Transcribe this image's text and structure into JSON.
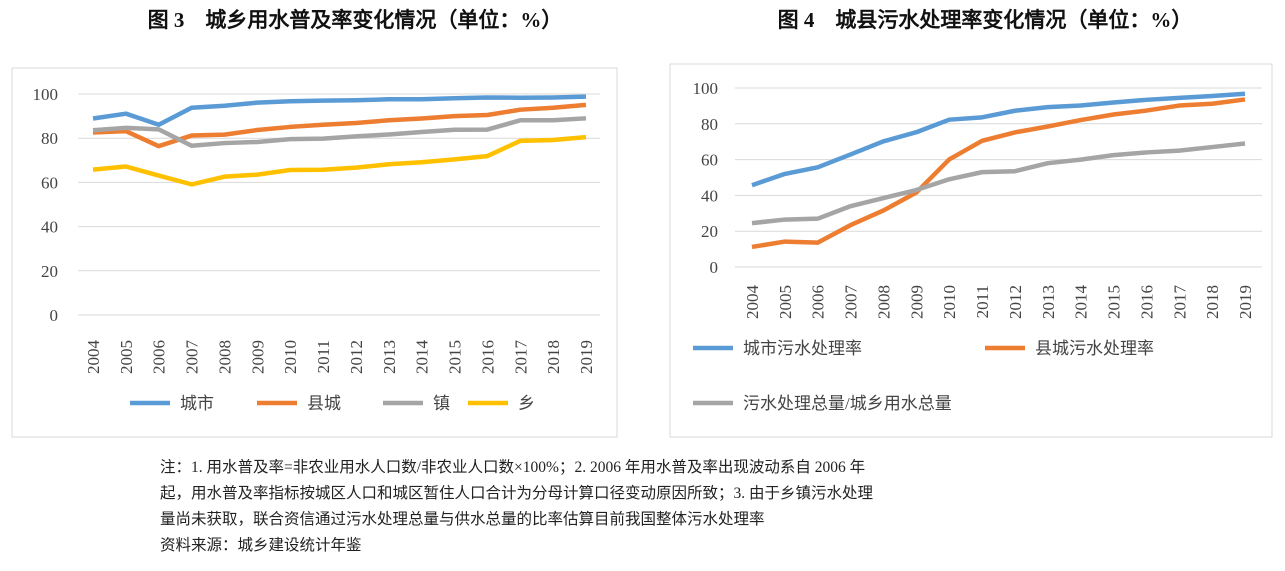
{
  "chart_data": [
    {
      "type": "line",
      "title": "图 3　城乡用水普及率变化情况（单位：%）",
      "categories": [
        "2004",
        "2005",
        "2006",
        "2007",
        "2008",
        "2009",
        "2010",
        "2011",
        "2012",
        "2013",
        "2014",
        "2015",
        "2016",
        "2017",
        "2018",
        "2019"
      ],
      "ylim": [
        0,
        100
      ],
      "yticks": [
        0,
        20,
        40,
        60,
        80,
        100
      ],
      "grid": true,
      "legend": "bottom",
      "series": [
        {
          "name": "城市",
          "color": "#5b9bd5",
          "values": [
            88.9,
            91.1,
            86.1,
            93.8,
            94.7,
            96.1,
            96.7,
            97.0,
            97.2,
            97.6,
            97.6,
            98.1,
            98.4,
            98.3,
            98.4,
            98.8
          ]
        },
        {
          "name": "县城",
          "color": "#ed7d31",
          "values": [
            82.6,
            83.2,
            76.4,
            81.2,
            81.6,
            83.7,
            85.1,
            86.1,
            86.9,
            88.1,
            88.9,
            90.0,
            90.5,
            92.9,
            93.8,
            95.1
          ]
        },
        {
          "name": "镇",
          "color": "#a5a5a5",
          "values": [
            83.6,
            84.7,
            84.0,
            76.6,
            77.8,
            78.3,
            79.6,
            79.8,
            80.8,
            81.7,
            82.8,
            83.8,
            83.9,
            88.1,
            88.1,
            89.0
          ]
        },
        {
          "name": "乡",
          "color": "#ffc000",
          "values": [
            65.8,
            67.2,
            63.1,
            59.1,
            62.6,
            63.5,
            65.6,
            65.7,
            66.7,
            68.2,
            69.1,
            70.4,
            71.9,
            78.8,
            79.2,
            80.5
          ]
        }
      ]
    },
    {
      "type": "line",
      "title": "图 4　城县污水处理率变化情况（单位：%）",
      "categories": [
        "2004",
        "2005",
        "2006",
        "2007",
        "2008",
        "2009",
        "2010",
        "2011",
        "2012",
        "2013",
        "2014",
        "2015",
        "2016",
        "2017",
        "2018",
        "2019"
      ],
      "ylim": [
        0,
        100
      ],
      "yticks": [
        0,
        20,
        40,
        60,
        80,
        100
      ],
      "grid": true,
      "legend": "bottom",
      "series": [
        {
          "name": "城市污水处理率",
          "color": "#5b9bd5",
          "values": [
            45.7,
            52.0,
            55.7,
            62.9,
            70.2,
            75.3,
            82.3,
            83.6,
            87.3,
            89.3,
            90.2,
            91.9,
            93.4,
            94.5,
            95.5,
            96.8
          ]
        },
        {
          "name": "县城污水处理率",
          "color": "#ed7d31",
          "values": [
            11.2,
            14.2,
            13.6,
            23.4,
            31.6,
            41.6,
            60.1,
            70.5,
            75.2,
            78.5,
            82.1,
            85.2,
            87.4,
            90.2,
            91.2,
            93.6
          ]
        },
        {
          "name": "污水处理总量/城乡用水总量",
          "color": "#a5a5a5",
          "values": [
            24.5,
            26.5,
            27.0,
            34.0,
            38.5,
            43.0,
            49.0,
            53.0,
            53.5,
            58.0,
            60.0,
            62.5,
            64.0,
            65.0,
            67.0,
            69.0
          ]
        }
      ]
    }
  ],
  "notes": [
    "注：1. 用水普及率=非农业用水人口数/非农业人口数×100%；2. 2006 年用水普及率出现波动系自 2006 年",
    "起，用水普及率指标按城区人口和城区暂住人口合计为分母计算口径变动原因所致；3. 由于乡镇污水处理",
    "量尚未获取，联合资信通过污水处理总量与供水总量的比率估算目前我国整体污水处理率",
    "资料来源：城乡建设统计年鉴"
  ]
}
